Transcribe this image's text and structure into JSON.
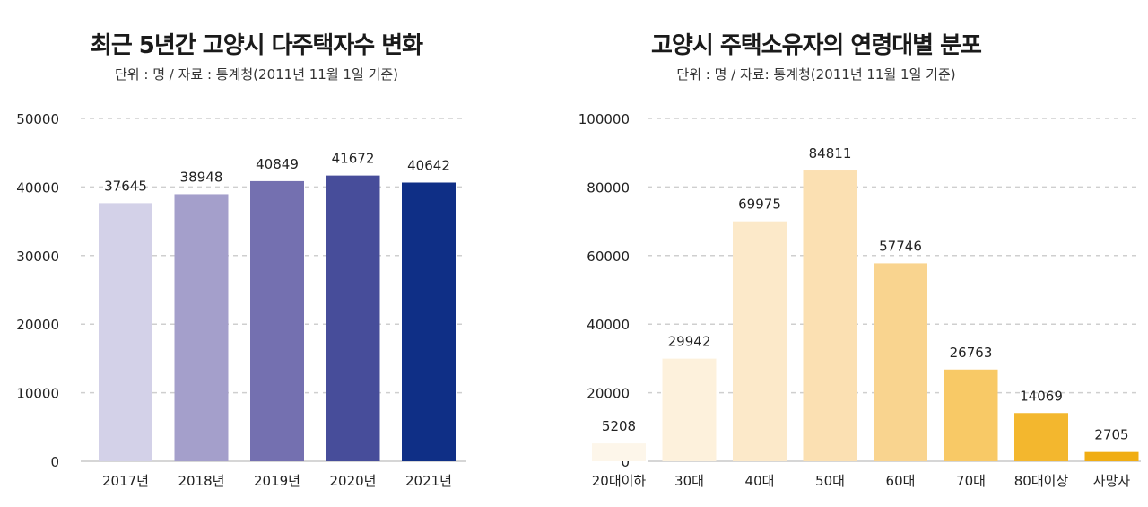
{
  "chart_data": [
    {
      "type": "bar",
      "title": "최근 5년간 고양시 다주택자수 변화",
      "subtitle": "단위 : 명 / 자료 : 통계청(2011년 11월 1일 기준)",
      "categories": [
        "2017년",
        "2018년",
        "2019년",
        "2020년",
        "2021년"
      ],
      "values": [
        37645,
        38948,
        40849,
        41672,
        40642
      ],
      "colors": [
        "#d3d1e8",
        "#a49fcb",
        "#7470b0",
        "#474d9a",
        "#0f2f86"
      ],
      "ylim": [
        0,
        50000
      ],
      "yticks": [
        "0",
        "10000",
        "20000",
        "30000",
        "40000",
        "50000"
      ],
      "grid": true
    },
    {
      "type": "bar",
      "title": "고양시 주택소유자의 연령대별 분포",
      "subtitle": "단위 : 명 / 자료: 통계청(2011년 11월 1일 기준)",
      "categories": [
        "20대이하",
        "30대",
        "40대",
        "50대",
        "60대",
        "70대",
        "80대이상",
        "사망자"
      ],
      "values": [
        5208,
        29942,
        69975,
        84811,
        57746,
        26763,
        14069,
        2705
      ],
      "colors": [
        "#fdf6ea",
        "#fdf1dc",
        "#fce9c9",
        "#fbe0b2",
        "#f9d48f",
        "#f8c966",
        "#f3b72e",
        "#f0ad13"
      ],
      "ylim": [
        0,
        100000
      ],
      "yticks": [
        "0",
        "20000",
        "40000",
        "60000",
        "80000",
        "100000"
      ],
      "grid": true
    }
  ]
}
